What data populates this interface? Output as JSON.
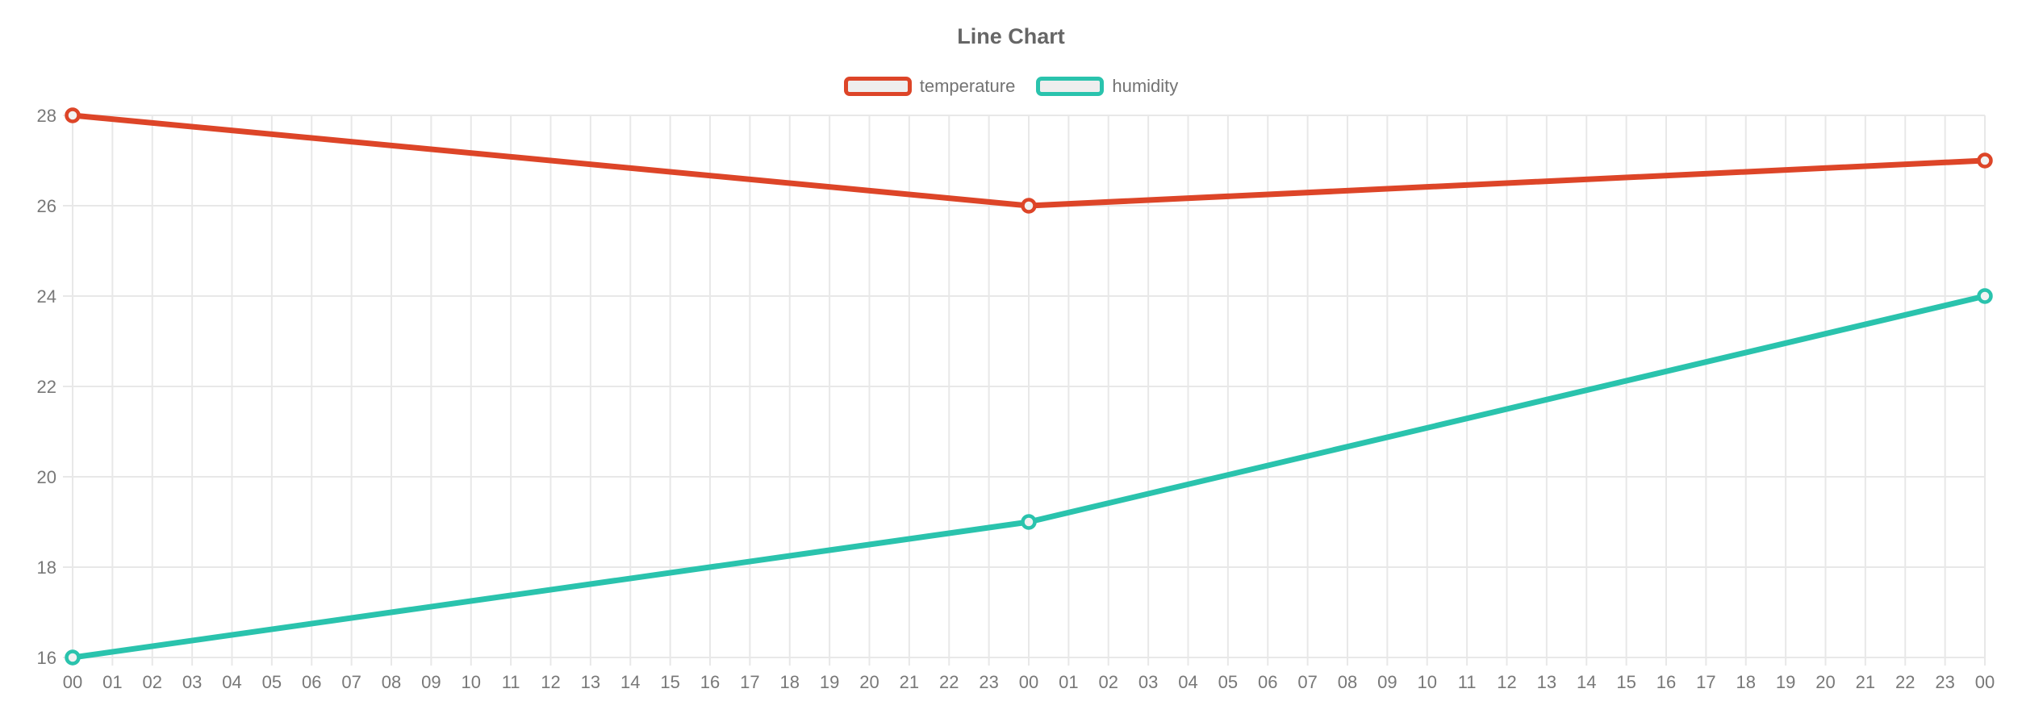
{
  "chart_data": {
    "type": "line",
    "title": "Line Chart",
    "legend_position": "top",
    "grid": true,
    "ylim": [
      16,
      28
    ],
    "y_ticks": [
      16,
      18,
      20,
      22,
      24,
      26,
      28
    ],
    "x_labels": [
      "00",
      "01",
      "02",
      "03",
      "04",
      "05",
      "06",
      "07",
      "08",
      "09",
      "10",
      "11",
      "12",
      "13",
      "14",
      "15",
      "16",
      "17",
      "18",
      "19",
      "20",
      "21",
      "22",
      "23",
      "00",
      "01",
      "02",
      "03",
      "04",
      "05",
      "06",
      "07",
      "08",
      "09",
      "10",
      "11",
      "12",
      "13",
      "14",
      "15",
      "16",
      "17",
      "18",
      "19",
      "20",
      "21",
      "22",
      "23",
      "00"
    ],
    "series": [
      {
        "name": "temperature",
        "color": "#dd4528",
        "x_indices": [
          0,
          24,
          48
        ],
        "values": [
          28,
          26,
          27
        ]
      },
      {
        "name": "humidity",
        "color": "#2ac3ad",
        "x_indices": [
          0,
          24,
          48
        ],
        "values": [
          16,
          19,
          24
        ]
      }
    ],
    "colors": {
      "grid": "#e8e8e8",
      "tick_text": "#787878",
      "title_text": "#666666",
      "legend_text": "#737373",
      "legend_swatch_fill": "#eeeeee",
      "marker_fill": "#f2f2f2",
      "background": "#ffffff"
    }
  }
}
